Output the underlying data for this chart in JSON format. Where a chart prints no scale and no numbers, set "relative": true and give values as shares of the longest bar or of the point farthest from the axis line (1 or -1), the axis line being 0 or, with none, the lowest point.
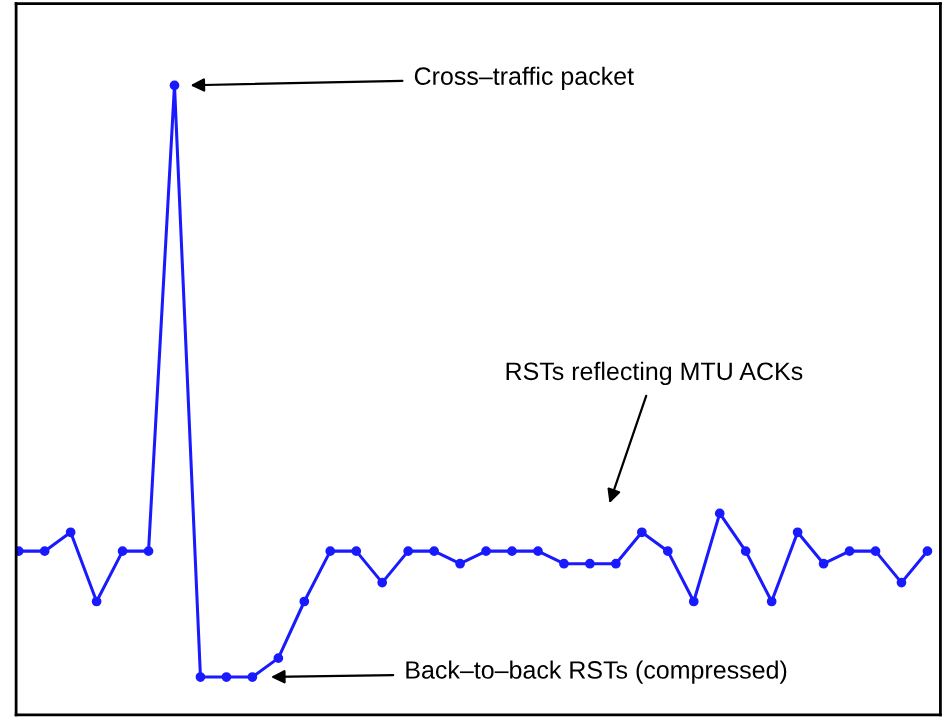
{
  "chart_data": {
    "type": "line",
    "relative": true,
    "marker": "circle",
    "line_style": "solid",
    "categories": [
      null,
      null,
      null,
      null,
      null,
      null,
      null,
      null,
      null,
      null,
      null,
      null,
      null,
      null,
      null,
      null,
      null,
      null,
      null,
      null,
      null,
      null,
      null,
      null,
      null,
      null,
      null,
      null,
      null,
      null,
      null,
      null,
      null,
      null,
      null,
      null
    ],
    "series": [
      {
        "color": "#1a1aff",
        "values": [
          0.26,
          0.26,
          0.29,
          0.18,
          0.26,
          0.26,
          1,
          0.06,
          0.06,
          0.06,
          0.09,
          0.18,
          0.26,
          0.26,
          0.21,
          0.26,
          0.26,
          0.24,
          0.26,
          0.26,
          0.26,
          0.24,
          0.24,
          0.24,
          0.29,
          0.26,
          0.18,
          0.32,
          0.26,
          0.18,
          0.29,
          0.24,
          0.26,
          0.26,
          0.21,
          0.26
        ]
      }
    ],
    "annotations": [
      "Cross–traffic packet",
      "RSTs reflecting MTU ACKs",
      "Back–to–back RSTs (compressed)"
    ]
  }
}
